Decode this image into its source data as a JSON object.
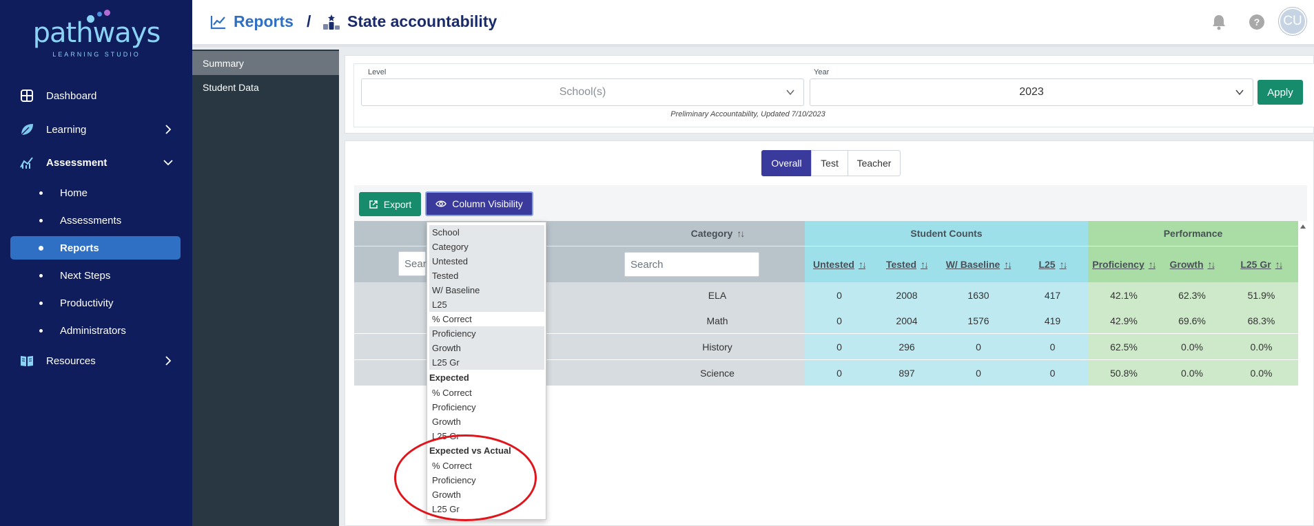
{
  "logo": {
    "word": "pathways",
    "sub": "LEARNING STUDIO"
  },
  "sidebar": {
    "items": [
      {
        "label": "Dashboard",
        "icon": "grid-icon"
      },
      {
        "label": "Learning",
        "icon": "leaf-icon"
      },
      {
        "label": "Assessment",
        "icon": "chart-icon"
      },
      {
        "label": "Resources",
        "icon": "book-icon"
      }
    ],
    "sub_items": [
      "Home",
      "Assessments",
      "Reports",
      "Next Steps",
      "Productivity",
      "Administrators"
    ],
    "active_sub": "Reports"
  },
  "header": {
    "crumb1": "Reports",
    "separator": "/",
    "crumb2": "State accountability",
    "avatar": "CU"
  },
  "leftnav": {
    "items": [
      "Summary",
      "Student Data"
    ]
  },
  "filters": {
    "level_label": "Level",
    "level_placeholder": "School(s)",
    "year_label": "Year",
    "year_value": "2023",
    "apply": "Apply",
    "note": "Preliminary Accountability, Updated 7/10/2023"
  },
  "segments": [
    "Overall",
    "Test",
    "Teacher"
  ],
  "toolbar": {
    "export": "Export",
    "column_visibility": "Column Visibility"
  },
  "table": {
    "category_header": "Category",
    "group_student_counts": "Student Counts",
    "group_performance": "Performance",
    "sub_headers": [
      "Untested",
      "Tested",
      "W/ Baseline",
      "L25",
      "Proficiency",
      "Growth",
      "L25 Gr"
    ],
    "search_placeholder": "Search",
    "rows": [
      {
        "category": "ELA",
        "untested": "0",
        "tested": "2008",
        "baseline": "1630",
        "l25": "417",
        "proficiency": "42.1%",
        "growth": "62.3%",
        "l25gr": "51.9%"
      },
      {
        "category": "Math",
        "untested": "0",
        "tested": "2004",
        "baseline": "1576",
        "l25": "419",
        "proficiency": "42.9%",
        "growth": "69.6%",
        "l25gr": "68.3%"
      },
      {
        "category": "History",
        "untested": "0",
        "tested": "296",
        "baseline": "0",
        "l25": "0",
        "proficiency": "62.5%",
        "growth": "0.0%",
        "l25gr": "0.0%"
      },
      {
        "category": "Science",
        "untested": "0",
        "tested": "897",
        "baseline": "0",
        "l25": "0",
        "proficiency": "50.8%",
        "growth": "0.0%",
        "l25gr": "0.0%"
      }
    ]
  },
  "column_menu": {
    "items": [
      "School",
      "Category",
      "Untested",
      "Tested",
      "W/ Baseline",
      "L25",
      "% Correct",
      "Proficiency",
      "Growth",
      "L25 Gr"
    ],
    "expected_header": "Expected",
    "expected_items": [
      "% Correct",
      "Proficiency",
      "Growth",
      "L25 Gr"
    ],
    "eva_header": "Expected vs Actual",
    "eva_items": [
      "% Correct",
      "Proficiency",
      "Growth",
      "L25 Gr"
    ]
  },
  "colors": {
    "sidebar": "#0f1d5c",
    "accent": "#2f6fc4",
    "apply": "#168c6c",
    "segment_active": "#3a3a9c",
    "counts_bg": "#a8e4ee",
    "perf_bg": "#c6e8c6",
    "annotation": "#e0141b"
  }
}
